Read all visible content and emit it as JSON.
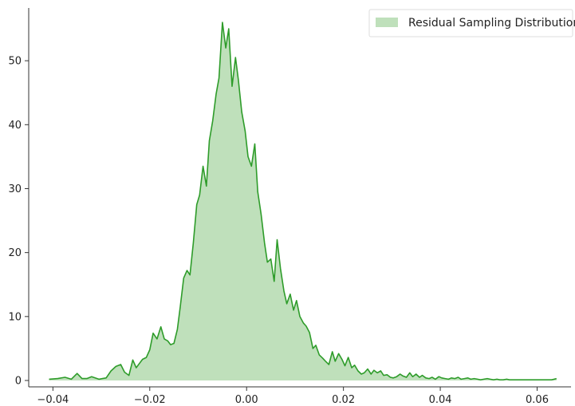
{
  "chart_data": {
    "type": "area",
    "title": "",
    "xlabel": "",
    "ylabel": "",
    "xlim": [
      -0.045,
      0.067
    ],
    "ylim": [
      0,
      58
    ],
    "xticks": [
      -0.04,
      -0.02,
      0.0,
      0.02,
      0.04,
      0.06
    ],
    "xtick_labels": [
      "−0.04",
      "−0.02",
      "0.00",
      "0.02",
      "0.04",
      "0.06"
    ],
    "yticks": [
      0,
      10,
      20,
      30,
      40,
      50
    ],
    "ytick_labels": [
      "0",
      "10",
      "20",
      "30",
      "40",
      "50"
    ],
    "grid": false,
    "legend_position": "top-right",
    "series": [
      {
        "name": "Residual Sampling Distribution",
        "fill_color": "#bfe0bb",
        "line_color": "#2e9c2a",
        "x": [
          -0.0408,
          -0.039,
          -0.0375,
          -0.0362,
          -0.035,
          -0.034,
          -0.033,
          -0.032,
          -0.0305,
          -0.029,
          -0.028,
          -0.027,
          -0.026,
          -0.0252,
          -0.0243,
          -0.0235,
          -0.0228,
          -0.0222,
          -0.0215,
          -0.0207,
          -0.02,
          -0.0193,
          -0.0185,
          -0.0177,
          -0.017,
          -0.0163,
          -0.0157,
          -0.015,
          -0.0143,
          -0.0137,
          -0.013,
          -0.0123,
          -0.0117,
          -0.011,
          -0.0103,
          -0.0097,
          -0.009,
          -0.0083,
          -0.0077,
          -0.007,
          -0.0063,
          -0.0057,
          -0.005,
          -0.0043,
          -0.0037,
          -0.003,
          -0.0023,
          -0.0017,
          -0.001,
          -0.0003,
          0.0003,
          0.001,
          0.0017,
          0.0023,
          0.003,
          0.0037,
          0.0043,
          0.005,
          0.0057,
          0.0063,
          0.007,
          0.0077,
          0.0083,
          0.009,
          0.0097,
          0.0103,
          0.011,
          0.0117,
          0.0123,
          0.013,
          0.0137,
          0.0143,
          0.015,
          0.0157,
          0.0163,
          0.017,
          0.0177,
          0.0183,
          0.019,
          0.0197,
          0.0203,
          0.021,
          0.0217,
          0.0223,
          0.023,
          0.0237,
          0.0243,
          0.025,
          0.0257,
          0.0263,
          0.027,
          0.0277,
          0.0283,
          0.029,
          0.0297,
          0.0303,
          0.031,
          0.0317,
          0.0323,
          0.033,
          0.0337,
          0.0343,
          0.035,
          0.0357,
          0.0363,
          0.037,
          0.0377,
          0.0383,
          0.039,
          0.0397,
          0.0403,
          0.041,
          0.0417,
          0.0423,
          0.043,
          0.0437,
          0.0443,
          0.045,
          0.0457,
          0.0463,
          0.047,
          0.0477,
          0.0483,
          0.049,
          0.0497,
          0.0503,
          0.051,
          0.0517,
          0.0523,
          0.053,
          0.0537,
          0.0543,
          0.055,
          0.0557,
          0.0563,
          0.057,
          0.0577,
          0.0583,
          0.059,
          0.06,
          0.061,
          0.062,
          0.063,
          0.064
        ],
        "y": [
          0.2,
          0.3,
          0.5,
          0.2,
          1.1,
          0.3,
          0.3,
          0.6,
          0.2,
          0.4,
          1.5,
          2.2,
          2.5,
          1.3,
          0.8,
          3.2,
          2.0,
          2.6,
          3.3,
          3.6,
          4.8,
          7.4,
          6.5,
          8.4,
          6.5,
          6.2,
          5.6,
          5.8,
          8.0,
          11.5,
          16.0,
          17.2,
          16.5,
          21.5,
          27.5,
          29.0,
          33.5,
          30.4,
          37.5,
          40.6,
          44.8,
          47.3,
          56.0,
          52.0,
          55.0,
          46.0,
          50.5,
          47.0,
          42.0,
          39.0,
          35.0,
          33.5,
          37.0,
          29.5,
          26.0,
          21.5,
          18.5,
          19.0,
          15.5,
          22.0,
          17.5,
          14.0,
          12.0,
          13.5,
          11.0,
          12.5,
          10.0,
          9.0,
          8.5,
          7.5,
          5.0,
          5.5,
          4.0,
          3.5,
          3.0,
          2.5,
          4.5,
          3.0,
          4.2,
          3.3,
          2.3,
          3.6,
          2.0,
          2.4,
          1.5,
          1.0,
          1.2,
          1.8,
          1.0,
          1.6,
          1.2,
          1.5,
          0.8,
          0.9,
          0.5,
          0.4,
          0.6,
          1.0,
          0.7,
          0.5,
          1.2,
          0.6,
          1.0,
          0.5,
          0.8,
          0.4,
          0.3,
          0.5,
          0.2,
          0.6,
          0.4,
          0.3,
          0.2,
          0.4,
          0.3,
          0.5,
          0.2,
          0.3,
          0.4,
          0.2,
          0.3,
          0.2,
          0.1,
          0.2,
          0.3,
          0.2,
          0.1,
          0.2,
          0.1,
          0.1,
          0.2,
          0.1,
          0.1,
          0.1,
          0.1,
          0.1,
          0.1,
          0.1,
          0.1,
          0.1,
          0.1,
          0.1,
          0.1,
          0.3
        ]
      }
    ]
  }
}
